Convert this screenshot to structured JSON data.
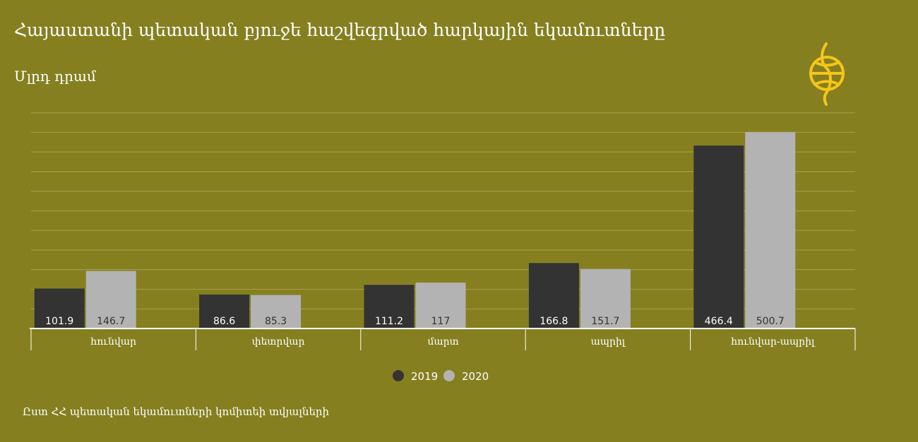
{
  "header": {
    "title": "Հայաստանի պետական բյուջե հաշվեգրված հարկային եկամուտները",
    "unit": "Մլրդ դրամ"
  },
  "logo": {
    "icon": "publisher-logo-icon",
    "color": "#f5c518"
  },
  "watermark": "",
  "colors": {
    "background": "#857f20",
    "series_2019": "#333333",
    "series_2020": "#b3b3b3",
    "gridline": "#a8a150",
    "axis": "#ffffff",
    "text": "#ffffff"
  },
  "chart_data": {
    "type": "bar",
    "categories": [
      "հունվար",
      "փետրվար",
      "մարտ",
      "ապրիլ",
      "հունվար-ապրիլ"
    ],
    "series": [
      {
        "name": "2019",
        "values": [
          101.9,
          86.6,
          111.2,
          166.8,
          466.4
        ],
        "labels": [
          "101.9",
          "86.6",
          "111.2",
          "166.8",
          "466.4"
        ],
        "color": "#333333"
      },
      {
        "name": "2020",
        "values": [
          146.7,
          85.3,
          117,
          151.7,
          500.7
        ],
        "labels": [
          "146.7",
          "85.3",
          "117",
          "151.7",
          "500.7"
        ],
        "color": "#b3b3b3"
      }
    ],
    "ylim": [
      0,
      550
    ],
    "grid": true,
    "legend": "bottom-center",
    "xlabel": "",
    "ylabel": ""
  },
  "footer": {
    "source": "Ըստ ՀՀ պետական եկամուտների կոմիտեի տվյալների"
  }
}
